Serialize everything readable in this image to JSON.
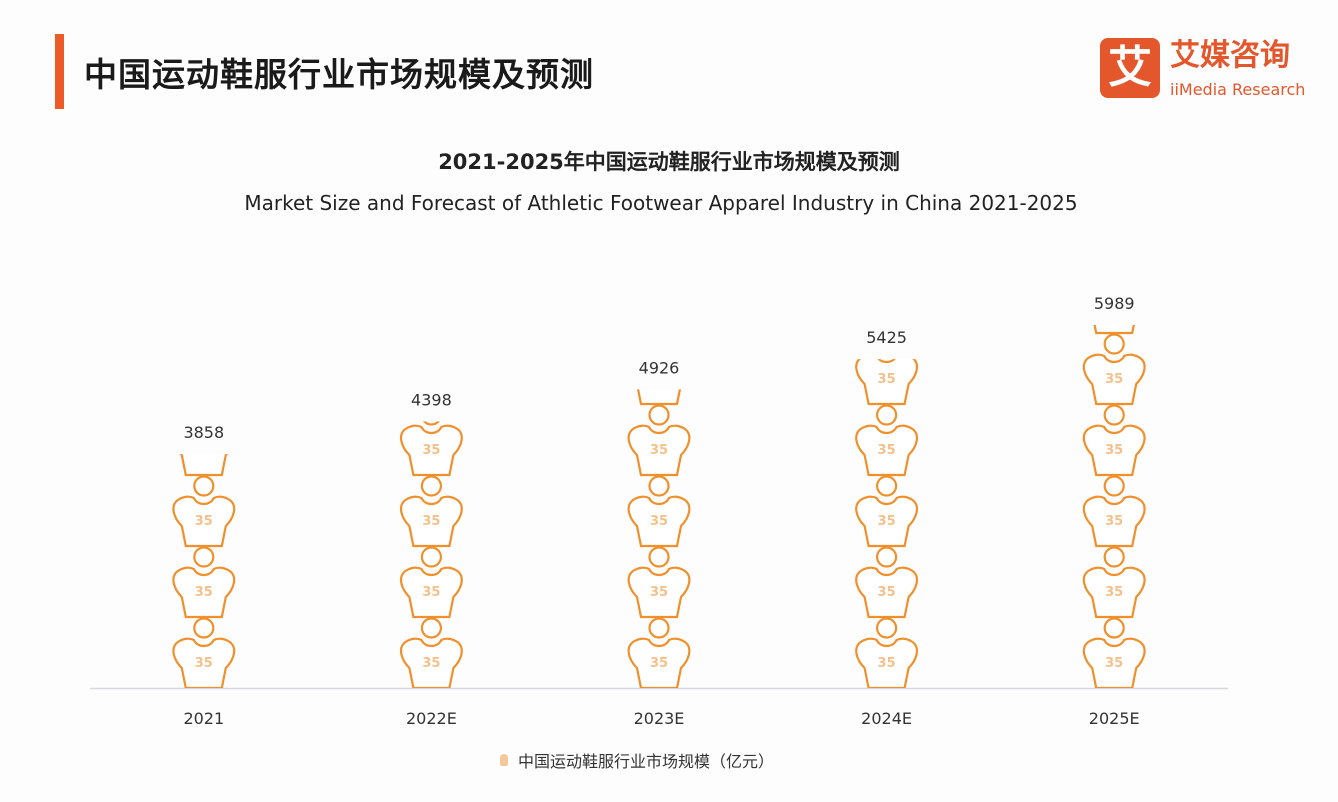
{
  "header": {
    "title": "中国运动鞋服行业市场规模及预测"
  },
  "logo": {
    "mark": "艾",
    "name_cn": "艾媒咨询",
    "name_en": "iiMedia Research"
  },
  "colors": {
    "accent": "#ec5a28",
    "symbol": "#f0902c",
    "symbol_text": "#f5c08a",
    "axis": "#d8d8e4"
  },
  "chart_data": {
    "type": "bar",
    "style": "pictorial",
    "symbol_icon": "t-shirt-icon",
    "symbol_label": "35",
    "title": "2021-2025年中国运动鞋服行业市场规模及预测",
    "subtitle": "Market Size and Forecast of Athletic Footwear Apparel Industry in China 2021-2025",
    "categories": [
      "2021",
      "2022E",
      "2023E",
      "2024E",
      "2025E"
    ],
    "series": [
      {
        "name": "中国运动鞋服行业市场规模（亿元）",
        "values": [
          3858,
          4398,
          4926,
          5425,
          5989
        ]
      }
    ],
    "data_labels": [
      "3858",
      "4398",
      "4926",
      "5425",
      "5989"
    ],
    "ylim": [
      0,
      6000
    ],
    "grid": false,
    "legend": "bottom"
  }
}
